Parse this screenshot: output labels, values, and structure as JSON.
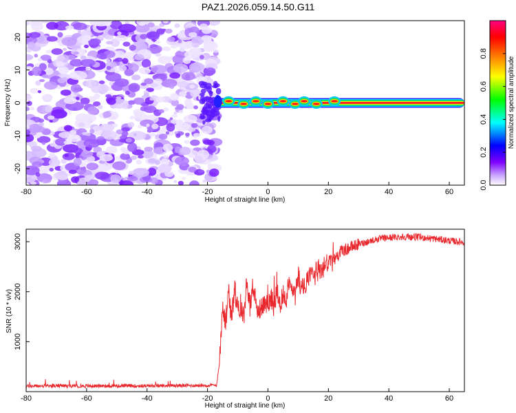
{
  "title": "PAZ1.2026.059.14.50.G11",
  "chart_data": [
    {
      "type": "heatmap",
      "name": "spectrogram",
      "xlabel": "Height of straight line (km)",
      "ylabel": "Frequency (Hz)",
      "xlim": [
        -80,
        65
      ],
      "ylim": [
        -25,
        25
      ],
      "xticks": [
        -80,
        -60,
        -40,
        -20,
        0,
        20,
        40,
        60
      ],
      "yticks": [
        -20,
        -10,
        0,
        10,
        20
      ],
      "noise_region_x": [
        -80,
        -17
      ],
      "signal_region_x": [
        -17,
        65
      ],
      "signal_frequency_hz": 0,
      "signal_peaks_x": [
        -13,
        -8,
        -4,
        0,
        5,
        9,
        12,
        16,
        22
      ],
      "colorbar": {
        "label": "Normalized spectral amplitude",
        "range": [
          0,
          1
        ],
        "ticks": [
          0.0,
          0.2,
          0.4,
          0.6,
          0.8
        ],
        "tick_labels": [
          "0.0",
          "0.2",
          "0.4",
          "0.6",
          "0.8"
        ],
        "colormap": [
          "#ffffff",
          "#7f00ff",
          "#0000ff",
          "#00ffff",
          "#00ff00",
          "#ffff00",
          "#ff8000",
          "#ff0000",
          "#ff0080"
        ]
      }
    },
    {
      "type": "line",
      "name": "snr",
      "xlabel": "Height of straight line (km)",
      "ylabel": "SNR (10 * v/v)",
      "xlim": [
        -80,
        65
      ],
      "ylim": [
        0,
        3250
      ],
      "xticks": [
        -80,
        -60,
        -40,
        -20,
        0,
        20,
        40,
        60
      ],
      "yticks": [
        1000,
        2000,
        3000
      ],
      "color": "#e8282d",
      "x": [
        -80,
        -70,
        -60,
        -50,
        -40,
        -30,
        -20,
        -17,
        -16,
        -15,
        -14,
        -13,
        -12,
        -11,
        -10,
        -9,
        -8,
        -7,
        -6,
        -5,
        -4,
        -3,
        -2,
        -1,
        0,
        1,
        2,
        3,
        4,
        5,
        6,
        7,
        8,
        9,
        10,
        11,
        12,
        13,
        14,
        15,
        16,
        17,
        18,
        19,
        20,
        22,
        24,
        26,
        28,
        30,
        33,
        36,
        40,
        45,
        50,
        55,
        60,
        65
      ],
      "y": [
        110,
        115,
        112,
        118,
        115,
        120,
        125,
        130,
        600,
        1700,
        1400,
        2000,
        1450,
        2100,
        1600,
        1750,
        1500,
        2250,
        1700,
        2150,
        1650,
        1600,
        1750,
        1800,
        1700,
        1900,
        1700,
        2000,
        1750,
        1950,
        1850,
        2200,
        2000,
        1900,
        2350,
        2050,
        2100,
        2200,
        2300,
        2250,
        2400,
        2450,
        2350,
        2550,
        2600,
        2650,
        2800,
        2850,
        2900,
        2950,
        3000,
        3050,
        3080,
        3100,
        3090,
        3060,
        3020,
        2990
      ]
    }
  ]
}
